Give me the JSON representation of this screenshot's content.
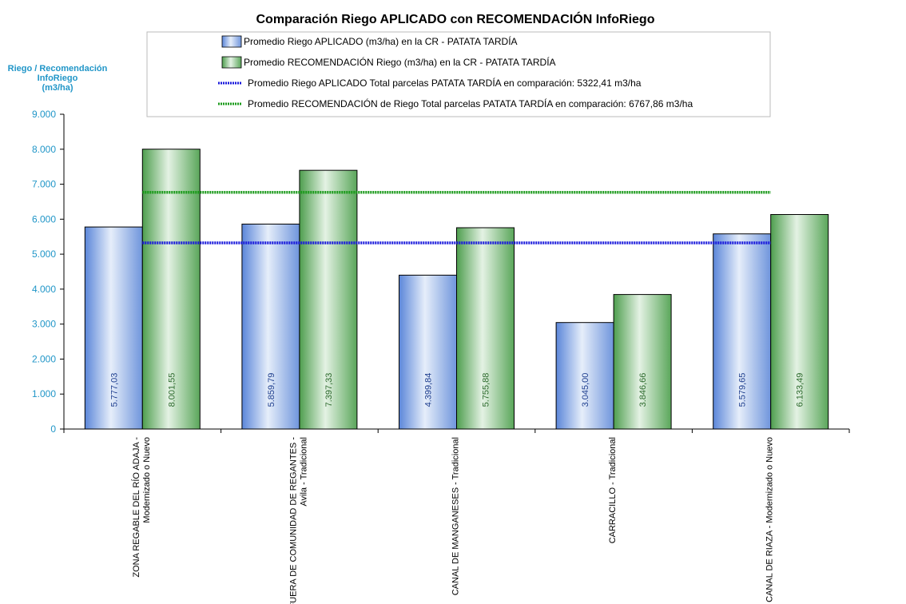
{
  "chart_data": {
    "type": "bar",
    "title": "Comparación Riego APLICADO con RECOMENDACIÓN InfoRiego",
    "ylabel_lines": [
      "Riego / Recomendación",
      "InfoRiego",
      "(m3/ha)"
    ],
    "ylim": [
      0,
      9000
    ],
    "yticks": [
      0,
      1000,
      2000,
      3000,
      4000,
      5000,
      6000,
      7000,
      8000,
      9000
    ],
    "ytick_labels": [
      "0",
      "1.000",
      "2.000",
      "3.000",
      "4.000",
      "5.000",
      "6.000",
      "7.000",
      "8.000",
      "9.000"
    ],
    "categories": [
      [
        "ZONA REGABLE DEL RÍO ADAJA -",
        "Modernizado o Nuevo"
      ],
      [
        "FUERA DE COMUNIDAD DE REGANTES -",
        "Avila - Tradicional"
      ],
      [
        "CANAL DE MANGANESES - Tradicional"
      ],
      [
        "CARRACILLO - Tradicional"
      ],
      [
        "CANAL DE RIAZA - Modernizado o Nuevo"
      ]
    ],
    "series": [
      {
        "name": "Promedio Riego APLICADO (m3/ha) en la CR - PATATA TARDÍA",
        "color": "#4f7fd8",
        "values": [
          5777.03,
          5859.79,
          4399.84,
          3045.0,
          5579.65
        ],
        "labels": [
          "5.777,03",
          "5.859,79",
          "4.399,84",
          "3.045,00",
          "5.579,65"
        ]
      },
      {
        "name": "Promedio RECOMENDACIÓN Riego (m3/ha) en la CR - PATATA TARDÍA",
        "color": "#4a9a4a",
        "values": [
          8001.55,
          7397.33,
          5755.88,
          3846.66,
          6133.49
        ],
        "labels": [
          "8.001,55",
          "7.397,33",
          "5.755,88",
          "3.846,66",
          "6.133,49"
        ]
      }
    ],
    "reference_lines": [
      {
        "name": "Promedio Riego APLICADO Total parcelas PATATA TARDÍA en comparación: 5322,41 m3/ha",
        "value": 5322.41,
        "color": "#1a1adc"
      },
      {
        "name": "Promedio RECOMENDACIÓN de Riego Total parcelas PATATA TARDÍA en comparación: 6767,86 m3/ha",
        "value": 6767.86,
        "color": "#1a9a1a"
      }
    ],
    "legend_position": "top"
  }
}
